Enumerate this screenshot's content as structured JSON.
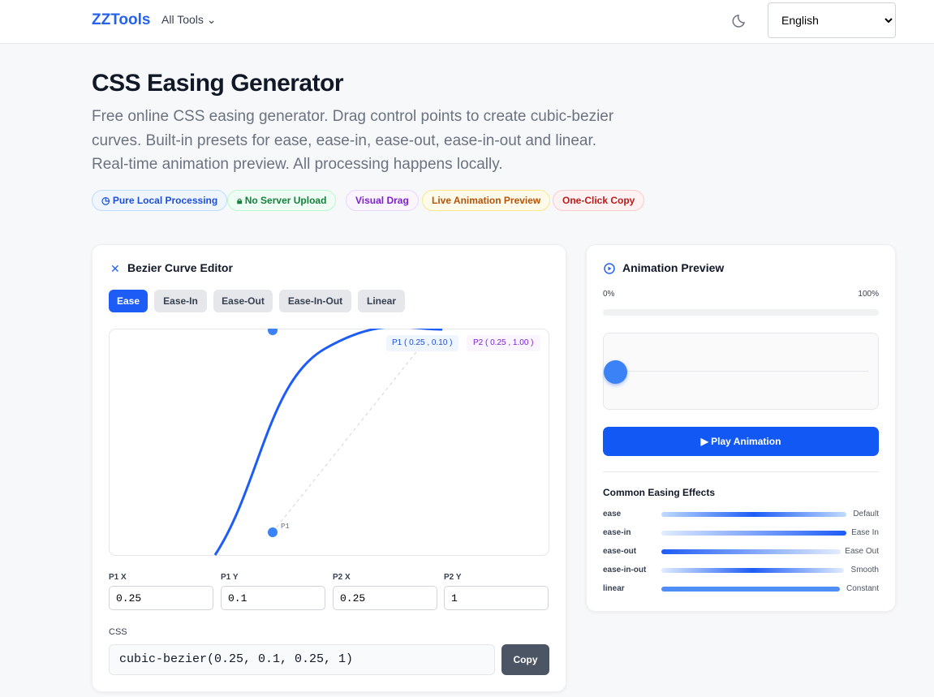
{
  "header": {
    "logo": "ZZTools",
    "menu": "All Tools",
    "language": "English"
  },
  "hero": {
    "title": "CSS Easing Generator",
    "description": "Free online CSS easing generator. Drag control points to create cubic-bezier curves. Built-in presets for ease, ease-in, ease-out, ease-in-out and linear. Real-time animation preview. All processing happens locally.",
    "badges": [
      "Pure Local Processing",
      "No Server Upload",
      "Visual Drag",
      "Live Animation Preview",
      "One-Click Copy"
    ]
  },
  "editor": {
    "title": "Bezier Curve Editor",
    "presets": [
      "Ease",
      "Ease-In",
      "Ease-Out",
      "Ease-In-Out",
      "Linear"
    ],
    "p1_tag": "P1 ( 0.25 , 0.10 )",
    "p2_tag": "P2 ( 0.25 , 1.00 )",
    "point_label": "P1",
    "inputs": [
      {
        "label": "P1 X",
        "value": "0.25"
      },
      {
        "label": "P1 Y",
        "value": "0.1"
      },
      {
        "label": "P2 X",
        "value": "0.25"
      },
      {
        "label": "P2 Y",
        "value": "1"
      }
    ],
    "css_label": "CSS",
    "css_value": "cubic-bezier(0.25, 0.1, 0.25, 1)",
    "copy": "Copy"
  },
  "preview": {
    "title": "Animation Preview",
    "start": "0%",
    "end": "100%",
    "play": "Play Animation",
    "effects_title": "Common Easing Effects",
    "effects": [
      {
        "name": "ease",
        "label": "Default"
      },
      {
        "name": "ease-in",
        "label": "Ease In"
      },
      {
        "name": "ease-out",
        "label": "Ease Out"
      },
      {
        "name": "ease-in-out",
        "label": "Smooth"
      },
      {
        "name": "linear",
        "label": "Constant"
      }
    ]
  }
}
